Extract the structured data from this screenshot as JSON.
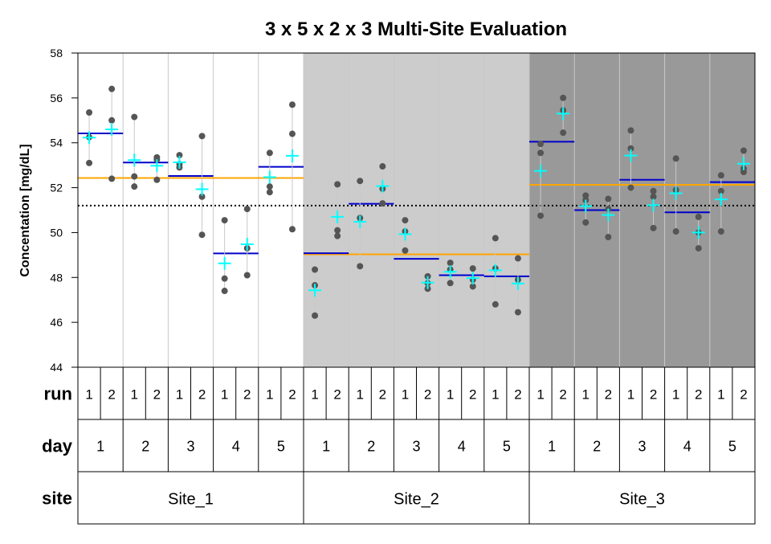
{
  "chart_data": {
    "type": "scatter",
    "title": "3 x 5 x 2 x 3 Multi-Site Evaluation",
    "ylabel": "Concentation [mg/dL]",
    "ylim": [
      44,
      58
    ],
    "y_ticks": [
      44,
      46,
      48,
      50,
      52,
      54,
      56,
      58
    ],
    "grand_mean": 51.2,
    "factor_labels": {
      "run": "run",
      "day": "day",
      "site": "site"
    },
    "sites": [
      {
        "label": "Site_1",
        "mean": 52.43,
        "bg": "#ffffff",
        "days": [
          {
            "label": "1",
            "mean": 54.42,
            "runs": [
              {
                "label": "1",
                "obs": [
                  55.35,
                  54.25,
                  53.1
                ],
                "mean": 54.23
              },
              {
                "label": "2",
                "obs": [
                  56.4,
                  55.0,
                  52.4
                ],
                "mean": 54.6
              }
            ]
          },
          {
            "label": "2",
            "mean": 53.12,
            "runs": [
              {
                "label": "1",
                "obs": [
                  55.15,
                  52.5,
                  52.05
                ],
                "mean": 53.23
              },
              {
                "label": "2",
                "obs": [
                  53.35,
                  53.25,
                  52.35
                ],
                "mean": 52.98
              }
            ]
          },
          {
            "label": "3",
            "mean": 52.52,
            "runs": [
              {
                "label": "1",
                "obs": [
                  53.45,
                  52.9,
                  53.05
                ],
                "mean": 53.13
              },
              {
                "label": "2",
                "obs": [
                  54.3,
                  51.6,
                  49.9
                ],
                "mean": 51.93
              }
            ]
          },
          {
            "label": "4",
            "mean": 49.07,
            "runs": [
              {
                "label": "1",
                "obs": [
                  50.55,
                  47.95,
                  47.4
                ],
                "mean": 48.63
              },
              {
                "label": "2",
                "obs": [
                  51.05,
                  49.3,
                  48.1
                ],
                "mean": 49.48
              }
            ]
          },
          {
            "label": "5",
            "mean": 52.93,
            "runs": [
              {
                "label": "1",
                "obs": [
                  53.55,
                  52.05,
                  51.8
                ],
                "mean": 52.47
              },
              {
                "label": "2",
                "obs": [
                  55.7,
                  54.4,
                  50.15
                ],
                "mean": 53.42
              }
            ]
          }
        ]
      },
      {
        "label": "Site_2",
        "mean": 49.03,
        "bg": "#cccccc",
        "days": [
          {
            "label": "1",
            "mean": 49.08,
            "runs": [
              {
                "label": "1",
                "obs": [
                  48.35,
                  47.65,
                  46.3
                ],
                "mean": 47.43
              },
              {
                "label": "2",
                "obs": [
                  52.15,
                  50.1,
                  49.85
                ],
                "mean": 50.7
              }
            ]
          },
          {
            "label": "2",
            "mean": 51.28,
            "runs": [
              {
                "label": "1",
                "obs": [
                  52.3,
                  50.65,
                  48.5
                ],
                "mean": 50.48
              },
              {
                "label": "2",
                "obs": [
                  52.95,
                  51.95,
                  51.3
                ],
                "mean": 52.07
              }
            ]
          },
          {
            "label": "3",
            "mean": 48.83,
            "runs": [
              {
                "label": "1",
                "obs": [
                  50.55,
                  50.05,
                  49.2
                ],
                "mean": 49.93
              },
              {
                "label": "2",
                "obs": [
                  48.05,
                  47.75,
                  47.5
                ],
                "mean": 47.77
              }
            ]
          },
          {
            "label": "4",
            "mean": 48.1,
            "runs": [
              {
                "label": "1",
                "obs": [
                  48.65,
                  48.35,
                  47.75
                ],
                "mean": 48.25
              },
              {
                "label": "2",
                "obs": [
                  48.4,
                  47.9,
                  47.6
                ],
                "mean": 47.97
              }
            ]
          },
          {
            "label": "5",
            "mean": 48.05,
            "runs": [
              {
                "label": "1",
                "obs": [
                  49.75,
                  48.4,
                  46.8
                ],
                "mean": 48.32
              },
              {
                "label": "2",
                "obs": [
                  48.85,
                  47.9,
                  46.45
                ],
                "mean": 47.73
              }
            ]
          }
        ]
      },
      {
        "label": "Site_3",
        "mean": 52.13,
        "bg": "#999999",
        "days": [
          {
            "label": "1",
            "mean": 54.05,
            "runs": [
              {
                "label": "1",
                "obs": [
                  53.95,
                  53.55,
                  50.75
                ],
                "mean": 52.75
              },
              {
                "label": "2",
                "obs": [
                  56.0,
                  55.45,
                  54.45
                ],
                "mean": 55.3
              }
            ]
          },
          {
            "label": "2",
            "mean": 51.0,
            "runs": [
              {
                "label": "1",
                "obs": [
                  51.65,
                  51.45,
                  50.45
                ],
                "mean": 51.18
              },
              {
                "label": "2",
                "obs": [
                  51.5,
                  51.05,
                  49.8
                ],
                "mean": 50.78
              }
            ]
          },
          {
            "label": "3",
            "mean": 52.35,
            "runs": [
              {
                "label": "1",
                "obs": [
                  54.55,
                  53.75,
                  52.0
                ],
                "mean": 53.43
              },
              {
                "label": "2",
                "obs": [
                  51.85,
                  51.6,
                  50.2
                ],
                "mean": 51.22
              }
            ]
          },
          {
            "label": "4",
            "mean": 50.9,
            "runs": [
              {
                "label": "1",
                "obs": [
                  53.3,
                  51.9,
                  50.05
                ],
                "mean": 51.75
              },
              {
                "label": "2",
                "obs": [
                  50.7,
                  50.0,
                  49.3
                ],
                "mean": 50.0
              }
            ]
          },
          {
            "label": "5",
            "mean": 52.25,
            "runs": [
              {
                "label": "1",
                "obs": [
                  52.55,
                  51.85,
                  50.05
                ],
                "mean": 51.48
              },
              {
                "label": "2",
                "obs": [
                  53.65,
                  52.85,
                  52.7
                ],
                "mean": 53.07
              }
            ]
          }
        ]
      }
    ],
    "colors": {
      "points": "#555555",
      "run_mean": "#00ffff",
      "day_mean": "#0000cc",
      "site_mean": "#ffa500",
      "grand_mean": "#000000",
      "vline": "#c8c8c8"
    }
  }
}
